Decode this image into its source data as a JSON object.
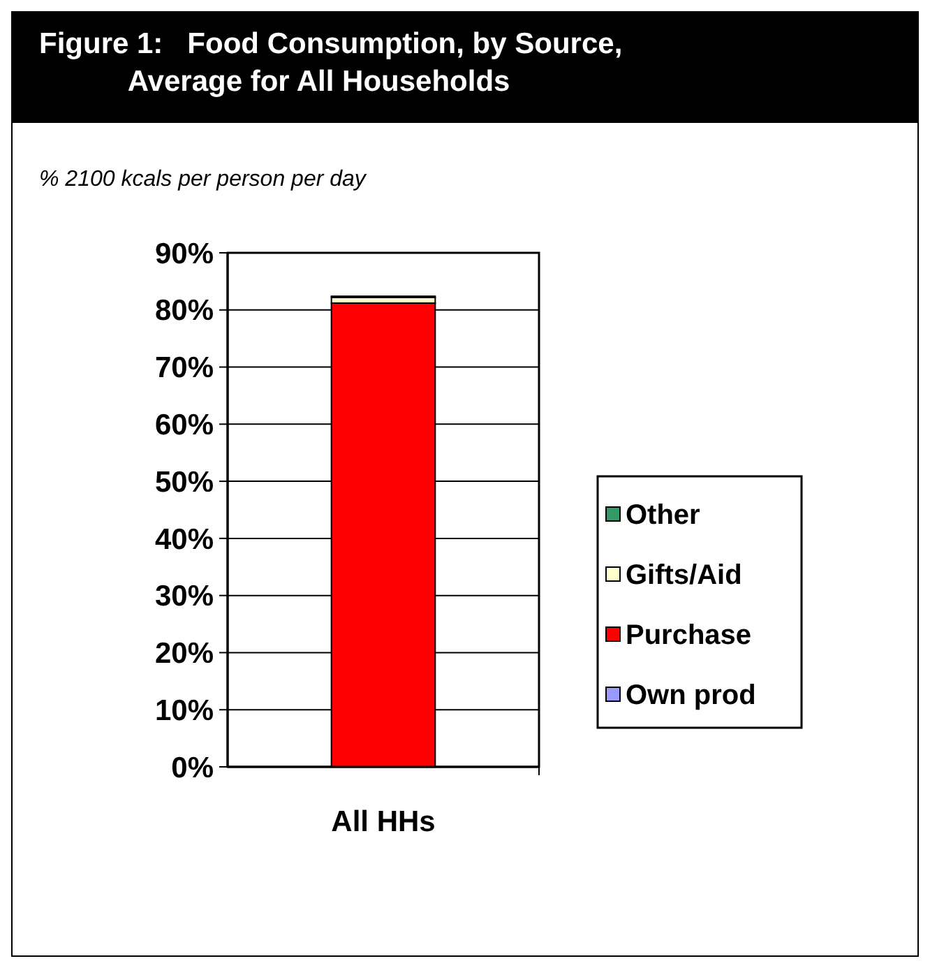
{
  "chart_data": {
    "type": "bar",
    "stacked": true,
    "title": "Figure 1:   Food Consumption, by Source,\n           Average for All Households",
    "subtitle": "% 2100 kcals per person per day",
    "categories": [
      "All HHs"
    ],
    "series": [
      {
        "name": "Own prod",
        "color": "#9999ff",
        "values": [
          null
        ]
      },
      {
        "name": "Purchase",
        "color": "#ff0000",
        "values": [
          81.2
        ]
      },
      {
        "name": "Gifts/Aid",
        "color": "#ffffcc",
        "values": [
          1.0
        ]
      },
      {
        "name": "Other",
        "color": "#339966",
        "values": [
          0.2
        ]
      }
    ],
    "ylim": [
      0,
      90
    ],
    "yticks": [
      {
        "value": 0,
        "label": "0%"
      },
      {
        "value": 10,
        "label": "10%"
      },
      {
        "value": 20,
        "label": "20%"
      },
      {
        "value": 30,
        "label": "30%"
      },
      {
        "value": 40,
        "label": "40%"
      },
      {
        "value": 50,
        "label": "50%"
      },
      {
        "value": 60,
        "label": "60%"
      },
      {
        "value": 70,
        "label": "70%"
      },
      {
        "value": 80,
        "label": "80%"
      },
      {
        "value": 90,
        "label": "90%"
      }
    ],
    "grid": "y",
    "legend": "right"
  }
}
